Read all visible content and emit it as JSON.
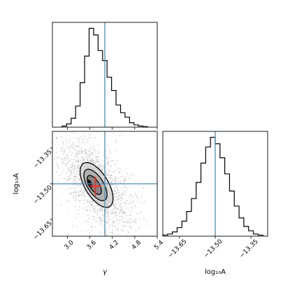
{
  "chart_data": {
    "type": "corner",
    "parameters": [
      "γ",
      "log₁₀A"
    ],
    "truth": {
      "gamma": 4.0,
      "log10A": -13.5
    },
    "truth_color": "#4c8bb5",
    "posterior": [
      {
        "type": "histogram",
        "parameter": "γ",
        "xlim": [
          2.6,
          5.4
        ],
        "xticks": [
          "3.0",
          "3.6",
          "4.2",
          "4.8",
          "5.4"
        ],
        "xlabel": "γ",
        "bin_edges": [
          2.86,
          2.98,
          3.1,
          3.22,
          3.34,
          3.46,
          3.58,
          3.7,
          3.82,
          3.94,
          4.06,
          4.18,
          4.3,
          4.42,
          4.54,
          4.66,
          4.78,
          4.9,
          5.02,
          5.14
        ],
        "counts": [
          1,
          3,
          8,
          19,
          40,
          64,
          89,
          83,
          69,
          60,
          45,
          33,
          20,
          13,
          9,
          4,
          2,
          1,
          0.5
        ],
        "truth": 4.0
      },
      {
        "type": "histogram",
        "parameter": "log₁₀A",
        "xlim": [
          -13.72,
          -13.28
        ],
        "xticks": [
          "−13.65",
          "−13.50",
          "−13.35"
        ],
        "xlabel": "log₁₀A",
        "bin_edges": [
          -13.72,
          -13.7,
          -13.68,
          -13.66,
          -13.64,
          -13.62,
          -13.6,
          -13.58,
          -13.56,
          -13.54,
          -13.52,
          -13.5,
          -13.48,
          -13.46,
          -13.44,
          -13.42,
          -13.4,
          -13.38,
          -13.36,
          -13.34,
          -13.32,
          -13.3
        ],
        "counts": [
          1,
          2,
          4,
          8,
          14,
          23,
          35,
          50,
          68,
          83,
          92,
          86,
          73,
          58,
          42,
          28,
          17,
          9,
          5,
          2,
          1
        ],
        "truth": -13.5
      },
      {
        "type": "contour2d",
        "x_parameter": "γ",
        "y_parameter": "log₁₀A",
        "xlim": [
          2.6,
          5.4
        ],
        "ylim": [
          -13.72,
          -13.28
        ],
        "xticks": [
          "3.0",
          "3.6",
          "4.2",
          "4.8",
          "5.4"
        ],
        "yticks": [
          "−13.35",
          "−13.50",
          "−13.65"
        ],
        "xlabel": "γ",
        "ylabel": "log₁₀A",
        "contours": [
          {
            "level": "inner",
            "center": [
              3.72,
              -13.505
            ],
            "sx": 0.19,
            "sy": 0.04,
            "rho": -0.65
          },
          {
            "level": "middle",
            "center": [
              3.75,
              -13.505
            ],
            "sx": 0.31,
            "sy": 0.066,
            "rho": -0.62
          },
          {
            "level": "outer",
            "center": [
              3.78,
              -13.505
            ],
            "sx": 0.44,
            "sy": 0.094,
            "rho": -0.6
          }
        ],
        "peak": [
          3.6,
          -13.5
        ],
        "best_fit": {
          "gamma": 3.75,
          "log10A": -13.51,
          "gamma_err": 0.15,
          "log10A_err": 0.04
        },
        "best_fit_color": "#e8332c",
        "truth": {
          "gamma": 4.0,
          "log10A": -13.5
        }
      }
    ]
  }
}
